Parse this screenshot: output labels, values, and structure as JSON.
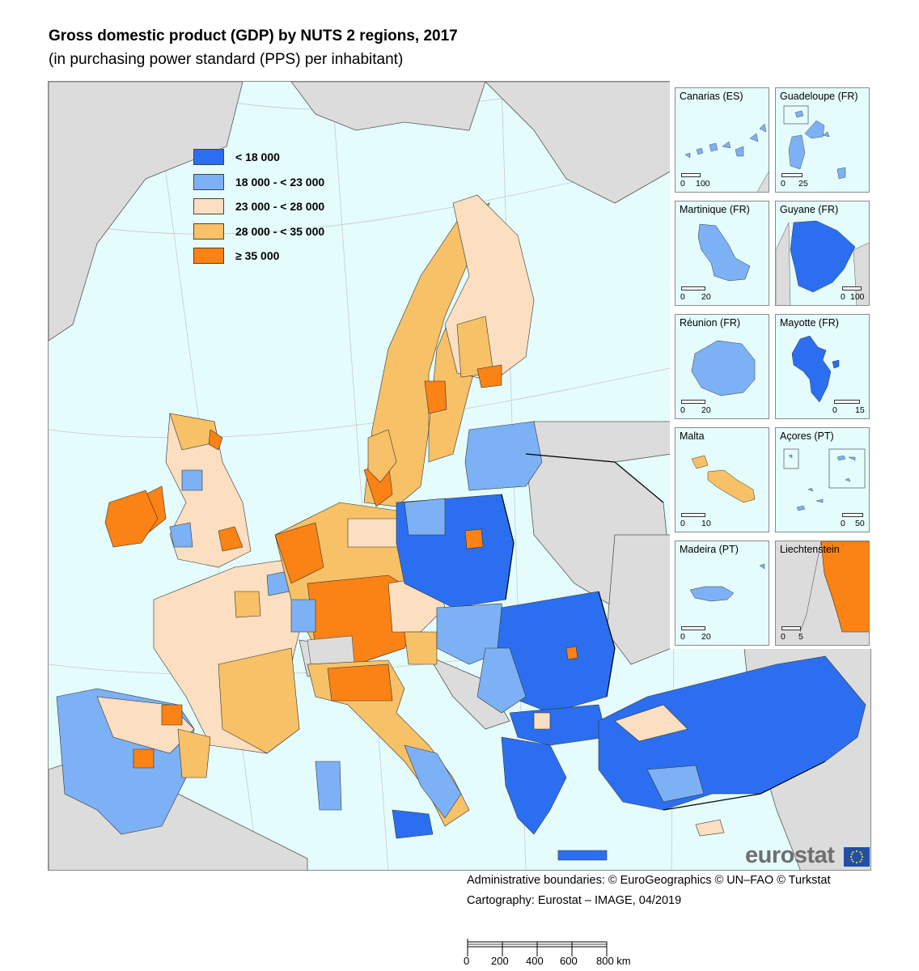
{
  "title": "Gross domestic product (GDP) by NUTS 2 regions, 2017",
  "subtitle": "(in purchasing power standard (PPS) per inhabitant)",
  "legend": [
    {
      "label": "< 18 000",
      "color": "#2b6ff0"
    },
    {
      "label": "18 000 - < 23 000",
      "color": "#7db1f5"
    },
    {
      "label": "23 000 - < 28 000",
      "color": "#fbdfc0"
    },
    {
      "label": "28 000 - < 35 000",
      "color": "#f7c167"
    },
    {
      "label": "≥ 35 000",
      "color": "#fb8214"
    }
  ],
  "colors": {
    "sea": "#e5fcfd",
    "non_eu": "#dcdcdc",
    "border": "#222222"
  },
  "insets": [
    {
      "name": "Canarias (ES)",
      "scale": [
        "0",
        "100"
      ]
    },
    {
      "name": "Guadeloupe (FR)",
      "scale": [
        "0",
        "25"
      ]
    },
    {
      "name": "Martinique (FR)",
      "scale": [
        "0",
        "20"
      ]
    },
    {
      "name": "Guyane (FR)",
      "scale": [
        "0",
        "100"
      ]
    },
    {
      "name": "Réunion (FR)",
      "scale": [
        "0",
        "20"
      ]
    },
    {
      "name": "Mayotte (FR)",
      "scale": [
        "0",
        "15"
      ]
    },
    {
      "name": "Malta",
      "scale": [
        "0",
        "10"
      ]
    },
    {
      "name": "Açores (PT)",
      "scale": [
        "0",
        "50"
      ]
    },
    {
      "name": "Madeira (PT)",
      "scale": [
        "0",
        "20"
      ]
    },
    {
      "name": "Liechtenstein",
      "scale": [
        "0",
        "5"
      ]
    }
  ],
  "logo": "eurostat",
  "credits": [
    "Administrative boundaries: © EuroGeographics © UN–FAO © Turkstat",
    "Cartography: Eurostat – IMAGE, 04/2019"
  ],
  "scale": {
    "ticks": [
      "0",
      "200",
      "400",
      "600",
      "800 km"
    ]
  }
}
